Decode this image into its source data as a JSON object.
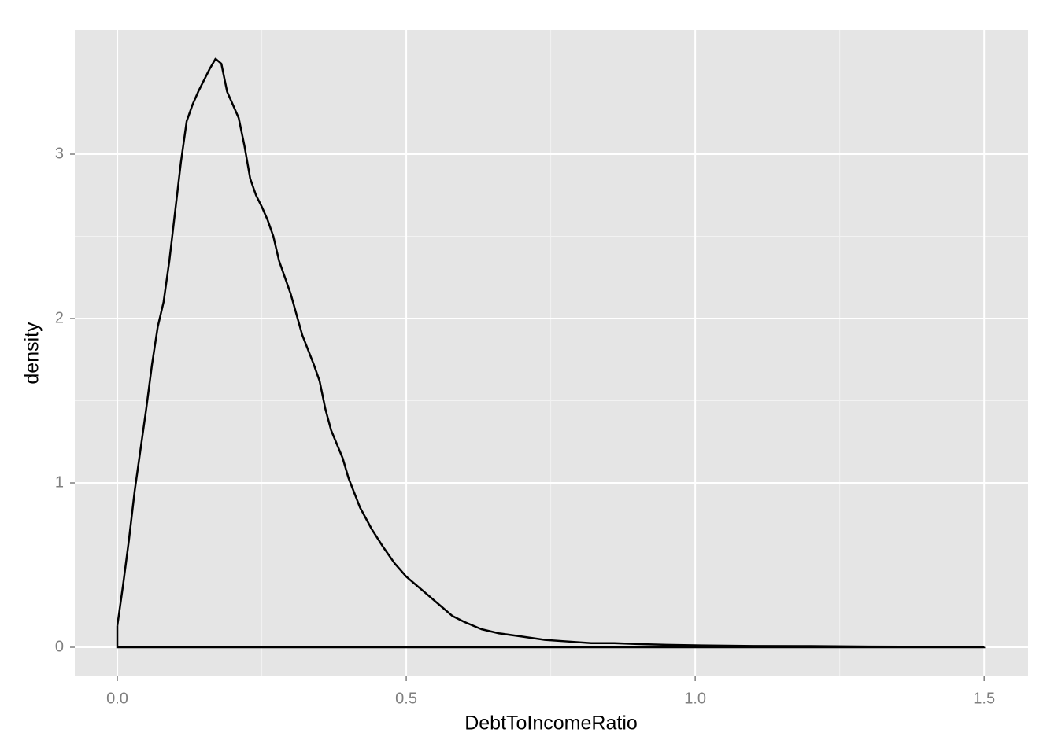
{
  "chart_data": {
    "type": "density",
    "x_label": "DebtToIncomeRatio",
    "y_label": "density",
    "x": [
      0,
      0.01,
      0.02,
      0.03,
      0.04,
      0.05,
      0.06,
      0.07,
      0.08,
      0.09,
      0.1,
      0.11,
      0.12,
      0.13,
      0.14,
      0.15,
      0.16,
      0.17,
      0.18,
      0.19,
      0.2,
      0.21,
      0.22,
      0.23,
      0.24,
      0.25,
      0.26,
      0.27,
      0.28,
      0.3,
      0.32,
      0.34,
      0.35,
      0.36,
      0.37,
      0.39,
      0.4,
      0.42,
      0.44,
      0.46,
      0.48,
      0.5,
      0.52,
      0.54,
      0.56,
      0.58,
      0.6,
      0.63,
      0.66,
      0.7,
      0.74,
      0.78,
      0.82,
      0.86,
      0.9,
      0.95,
      1.0,
      1.1,
      1.2,
      1.3,
      1.4,
      1.5
    ],
    "values": [
      0.13,
      0.38,
      0.65,
      0.95,
      1.2,
      1.45,
      1.72,
      1.95,
      2.1,
      2.35,
      2.65,
      2.95,
      3.2,
      3.3,
      3.38,
      3.45,
      3.52,
      3.58,
      3.55,
      3.38,
      3.3,
      3.22,
      3.05,
      2.85,
      2.75,
      2.68,
      2.6,
      2.5,
      2.35,
      2.15,
      1.9,
      1.72,
      1.62,
      1.45,
      1.32,
      1.15,
      1.03,
      0.85,
      0.72,
      0.61,
      0.51,
      0.43,
      0.37,
      0.31,
      0.25,
      0.19,
      0.155,
      0.11,
      0.085,
      0.065,
      0.045,
      0.035,
      0.025,
      0.025,
      0.02,
      0.015,
      0.012,
      0.008,
      0.007,
      0.004,
      0.003,
      0.002
    ],
    "color": "#000000",
    "xlim": [
      -0.0736,
      1.576
    ],
    "ylim": [
      -0.177,
      3.756
    ],
    "xticks": [
      {
        "value": 0,
        "label": "0.0"
      },
      0.5,
      {
        "value": 1,
        "label": "1.0"
      },
      1.5
    ],
    "yticks": [
      0,
      1,
      2,
      3
    ],
    "xminorticks": [
      0.25,
      0.75,
      1.25
    ],
    "yminorticks": [
      0.5,
      1.5,
      2.5,
      3.5
    ],
    "grid": true
  }
}
